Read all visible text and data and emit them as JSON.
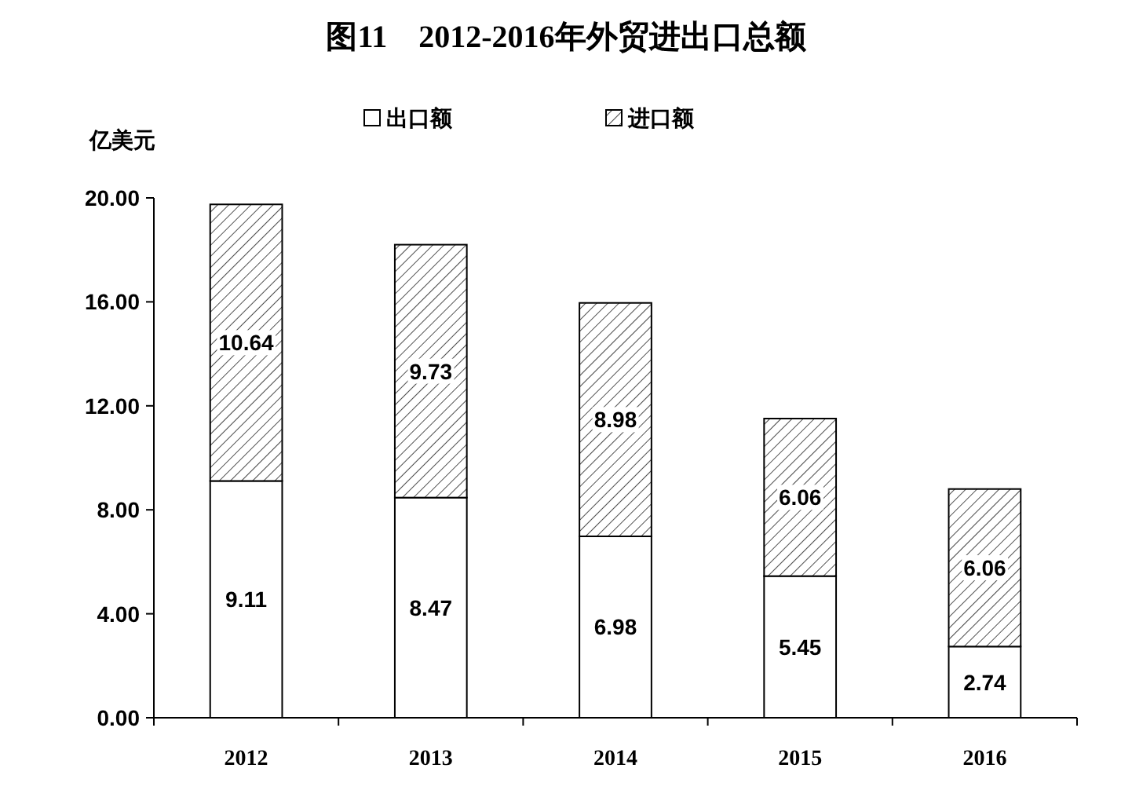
{
  "chart_data": {
    "type": "bar",
    "title": "图11　2012-2016年外贸进出口总额",
    "ylabel": "亿美元",
    "categories": [
      "2012",
      "2013",
      "2014",
      "2015",
      "2016"
    ],
    "series": [
      {
        "name": "出口额",
        "color": "#ffffff",
        "values": [
          9.11,
          8.47,
          6.98,
          5.45,
          2.74
        ]
      },
      {
        "name": "进口额",
        "color": "#000000",
        "values": [
          10.64,
          9.73,
          8.98,
          6.06,
          6.06
        ]
      }
    ],
    "stacked": true,
    "data_labels": true,
    "legend": "top",
    "ylim": [
      0,
      20
    ],
    "yticks": [
      {
        "value": 0,
        "label": "0.00"
      },
      {
        "value": 4,
        "label": "4.00"
      },
      {
        "value": 8,
        "label": "8.00"
      },
      {
        "value": 12,
        "label": "12.00"
      },
      {
        "value": 16,
        "label": "16.00"
      },
      {
        "value": 20,
        "label": "20.00"
      }
    ]
  }
}
